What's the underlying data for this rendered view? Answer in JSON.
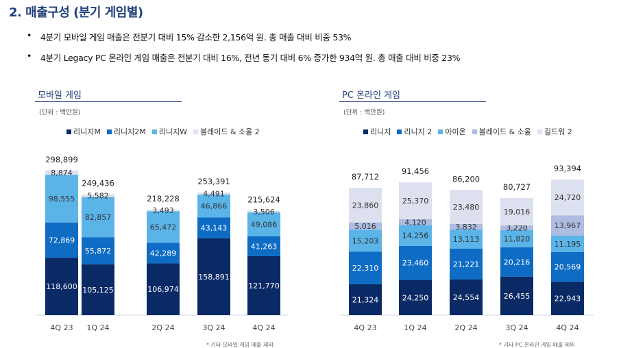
{
  "header": {
    "title": "2. 매출구성 (분기 게임별)",
    "bullet_symbol": "•",
    "bullets": [
      "4분기 모바일 게임 매출은 전분기 대비 15% 감소한 2,156억 원. 총 매출 대비 비중 53%",
      "4분기 Legacy PC 온라인 게임 매출은 전분기 대비 16%, 전년 동기 대비 6% 증가한 934억 원. 총 매출 대비 비중 23%"
    ]
  },
  "chart_data": [
    {
      "type": "bar",
      "stacked": true,
      "title": "모바일 게임",
      "unit_label": "(단위 : 백만원)",
      "footnote": "* 기타 모바일 게임 매출 제외",
      "categories": [
        "4Q 23",
        "1Q 24",
        "2Q 24",
        "3Q 24",
        "4Q 24"
      ],
      "totals": [
        "298,899",
        "249,436",
        "218,228",
        "253,391",
        "215,624"
      ],
      "ylim": [
        0,
        300000
      ],
      "legend_position": "top",
      "series": [
        {
          "name": "리니지M",
          "color": "#0a2a66",
          "values": [
            118600,
            105125,
            106974,
            158891,
            121770
          ],
          "labels": [
            "118,600",
            "105,125",
            "106,974",
            "158,891",
            "121,770"
          ]
        },
        {
          "name": "리니지2M",
          "color": "#0e6cc4",
          "values": [
            72869,
            55872,
            42289,
            43143,
            41263
          ],
          "labels": [
            "72,869",
            "55,872",
            "42,289",
            "43,143",
            "41,263"
          ]
        },
        {
          "name": "리니지W",
          "color": "#5ab4e8",
          "values": [
            98555,
            82857,
            65472,
            46866,
            49086
          ],
          "labels": [
            "98,555",
            "82,857",
            "65,472",
            "46,866",
            "49,086"
          ]
        },
        {
          "name": "블레이드 & 소울 2",
          "color": "#dde1ef",
          "values": [
            8874,
            5582,
            3493,
            4491,
            3506
          ],
          "labels": [
            "8,874",
            "5,582",
            "3,493",
            "4,491",
            "3,506"
          ]
        }
      ]
    },
    {
      "type": "bar",
      "stacked": true,
      "title": "PC 온라인 게임",
      "unit_label": "(단위 : 백만원)",
      "footnote": "* 기타 PC 온라인 게임 매출 제외",
      "categories": [
        "4Q 23",
        "1Q 24",
        "2Q 24",
        "3Q 24",
        "4Q 24"
      ],
      "totals": [
        "87,712",
        "91,456",
        "86,200",
        "80,727",
        "93,394"
      ],
      "ylim": [
        0,
        100000
      ],
      "legend_position": "top",
      "series": [
        {
          "name": "리니지",
          "color": "#0a2a66",
          "values": [
            21324,
            24250,
            24554,
            26455,
            22943
          ],
          "labels": [
            "21,324",
            "24,250",
            "24,554",
            "26,455",
            "22,943"
          ]
        },
        {
          "name": "리니지 2",
          "color": "#0e6cc4",
          "values": [
            22310,
            23460,
            21221,
            20216,
            20569
          ],
          "labels": [
            "22,310",
            "23,460",
            "21,221",
            "20,216",
            "20,569"
          ]
        },
        {
          "name": "아이온",
          "color": "#5ab4e8",
          "values": [
            15203,
            14256,
            13113,
            11820,
            11195
          ],
          "labels": [
            "15,203",
            "14,256",
            "13,113",
            "11,820",
            "11,195"
          ]
        },
        {
          "name": "블레이드 & 소울",
          "color": "#aebce0",
          "values": [
            5016,
            4120,
            3832,
            3220,
            13967
          ],
          "labels": [
            "5,016",
            "4,120",
            "3,832",
            "3,220",
            "13,967"
          ]
        },
        {
          "name": "길드워 2",
          "color": "#dde1ef",
          "values": [
            23860,
            25370,
            23480,
            19016,
            24720
          ],
          "labels": [
            "23,860",
            "25,370",
            "23,480",
            "19,016",
            "24,720"
          ]
        }
      ]
    }
  ]
}
